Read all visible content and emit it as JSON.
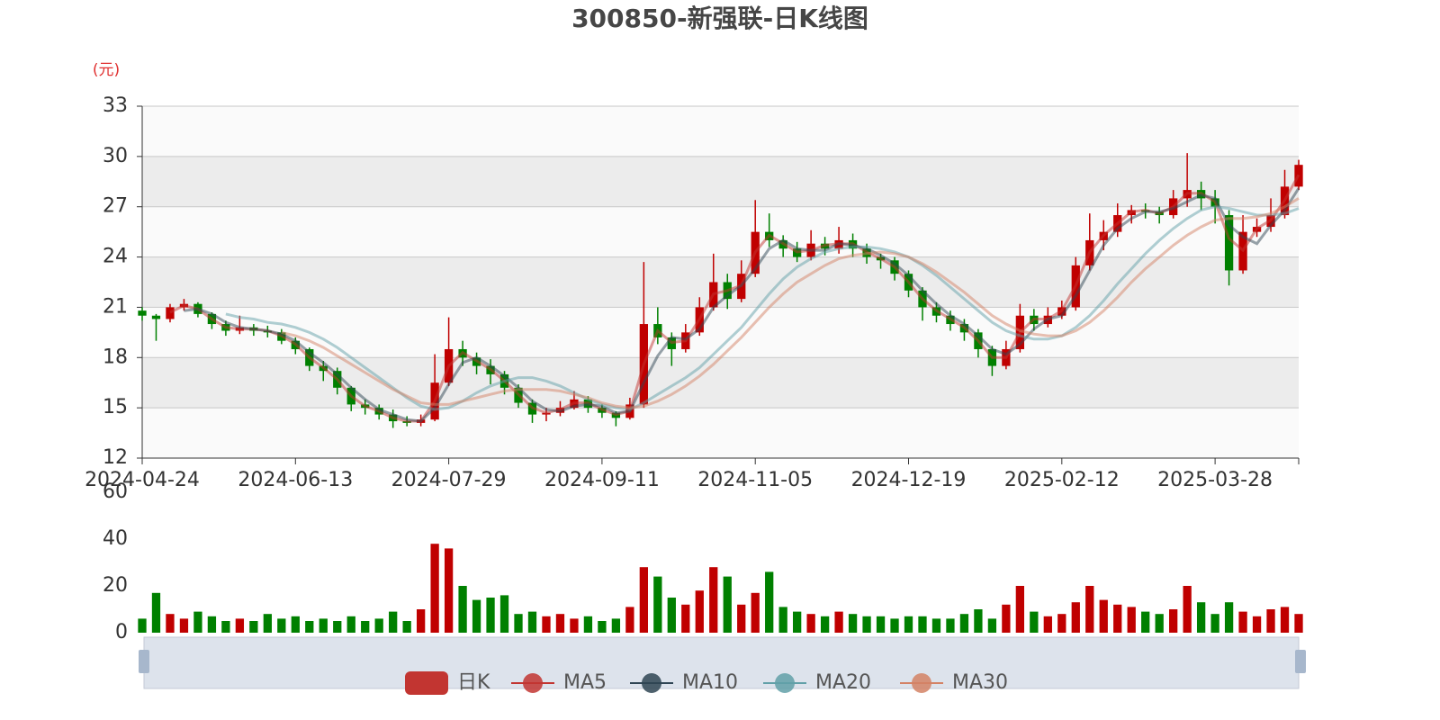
{
  "chart_data": {
    "type": "candlestick",
    "title": "300850-新强联-日K线图",
    "y_unit": "(元)",
    "candle_name": "日K",
    "up_color": "#c00000",
    "down_color": "#008000",
    "legend_color": "#c23531",
    "categories": [
      "2024-04-24",
      null,
      null,
      null,
      null,
      null,
      null,
      null,
      null,
      null,
      null,
      "2024-06-13",
      null,
      null,
      null,
      null,
      null,
      null,
      null,
      null,
      null,
      null,
      "2024-07-29",
      null,
      null,
      null,
      null,
      null,
      null,
      null,
      null,
      null,
      null,
      "2024-09-11",
      null,
      null,
      null,
      null,
      null,
      null,
      null,
      null,
      null,
      null,
      "2024-11-05",
      null,
      null,
      null,
      null,
      null,
      null,
      null,
      null,
      null,
      null,
      "2024-12-19",
      null,
      null,
      null,
      null,
      null,
      null,
      null,
      null,
      null,
      null,
      "2025-02-12",
      null,
      null,
      null,
      null,
      null,
      null,
      null,
      null,
      null,
      null,
      "2025-03-28",
      null,
      null,
      null,
      null,
      null,
      null
    ],
    "ohlc": [
      [
        20.8,
        20.5,
        20.2,
        21.0
      ],
      [
        20.5,
        20.3,
        19.0,
        20.6
      ],
      [
        20.3,
        21.0,
        20.1,
        21.2
      ],
      [
        21.0,
        21.2,
        20.8,
        21.5
      ],
      [
        21.2,
        20.6,
        20.4,
        21.3
      ],
      [
        20.6,
        20.0,
        19.7,
        20.7
      ],
      [
        20.0,
        19.6,
        19.3,
        20.2
      ],
      [
        19.6,
        19.8,
        19.4,
        20.5
      ],
      [
        19.8,
        19.6,
        19.3,
        20.0
      ],
      [
        19.6,
        19.5,
        19.2,
        19.9
      ],
      [
        19.5,
        19.0,
        18.8,
        19.7
      ],
      [
        19.0,
        18.5,
        18.2,
        19.2
      ],
      [
        18.5,
        17.5,
        17.2,
        18.6
      ],
      [
        17.5,
        17.2,
        16.6,
        17.8
      ],
      [
        17.2,
        16.2,
        15.8,
        17.4
      ],
      [
        16.2,
        15.2,
        14.8,
        16.3
      ],
      [
        15.2,
        15.0,
        14.6,
        15.5
      ],
      [
        15.0,
        14.6,
        14.3,
        15.2
      ],
      [
        14.6,
        14.2,
        13.8,
        14.9
      ],
      [
        14.2,
        14.1,
        13.9,
        14.5
      ],
      [
        14.1,
        14.3,
        13.9,
        14.6
      ],
      [
        14.3,
        16.5,
        14.2,
        18.2
      ],
      [
        16.5,
        18.5,
        16.3,
        20.4
      ],
      [
        18.5,
        18.0,
        17.5,
        19.0
      ],
      [
        18.0,
        17.5,
        17.0,
        18.3
      ],
      [
        17.5,
        17.0,
        16.4,
        17.9
      ],
      [
        17.0,
        16.2,
        15.8,
        17.2
      ],
      [
        16.2,
        15.3,
        15.0,
        16.4
      ],
      [
        15.3,
        14.6,
        14.1,
        15.5
      ],
      [
        14.6,
        14.7,
        14.2,
        15.0
      ],
      [
        14.7,
        15.0,
        14.5,
        15.4
      ],
      [
        15.0,
        15.5,
        14.9,
        16.0
      ],
      [
        15.5,
        15.0,
        14.7,
        15.7
      ],
      [
        15.0,
        14.7,
        14.4,
        15.2
      ],
      [
        14.7,
        14.4,
        13.9,
        14.8
      ],
      [
        14.4,
        15.2,
        14.3,
        15.6
      ],
      [
        15.2,
        20.0,
        15.0,
        23.7
      ],
      [
        20.0,
        19.2,
        18.8,
        21.0
      ],
      [
        19.2,
        18.5,
        17.5,
        19.5
      ],
      [
        18.5,
        19.5,
        18.3,
        20.0
      ],
      [
        19.5,
        21.0,
        19.3,
        21.6
      ],
      [
        21.0,
        22.5,
        20.8,
        24.2
      ],
      [
        22.5,
        21.5,
        20.9,
        23.0
      ],
      [
        21.5,
        23.0,
        21.3,
        23.8
      ],
      [
        23.0,
        25.5,
        22.8,
        27.4
      ],
      [
        25.5,
        25.0,
        24.6,
        26.6
      ],
      [
        25.0,
        24.5,
        24.0,
        25.3
      ],
      [
        24.5,
        24.0,
        23.7,
        24.9
      ],
      [
        24.0,
        24.8,
        23.8,
        25.6
      ],
      [
        24.8,
        24.5,
        24.1,
        25.2
      ],
      [
        24.5,
        25.0,
        24.2,
        25.8
      ],
      [
        25.0,
        24.5,
        24.0,
        25.4
      ],
      [
        24.5,
        24.0,
        23.6,
        24.8
      ],
      [
        24.0,
        23.8,
        23.3,
        24.2
      ],
      [
        23.8,
        23.0,
        22.6,
        24.0
      ],
      [
        23.0,
        22.0,
        21.6,
        23.2
      ],
      [
        22.0,
        21.0,
        20.2,
        22.2
      ],
      [
        21.0,
        20.5,
        20.1,
        21.3
      ],
      [
        20.5,
        20.0,
        19.6,
        20.8
      ],
      [
        20.0,
        19.5,
        19.0,
        20.3
      ],
      [
        19.5,
        18.5,
        18.0,
        19.7
      ],
      [
        18.5,
        17.5,
        16.9,
        18.7
      ],
      [
        17.5,
        18.5,
        17.3,
        19.0
      ],
      [
        18.5,
        20.5,
        18.3,
        21.2
      ],
      [
        20.5,
        20.0,
        19.6,
        20.9
      ],
      [
        20.0,
        20.5,
        19.8,
        21.0
      ],
      [
        20.5,
        21.0,
        20.3,
        21.4
      ],
      [
        21.0,
        23.5,
        20.8,
        24.0
      ],
      [
        23.5,
        25.0,
        23.2,
        26.6
      ],
      [
        25.0,
        25.5,
        24.4,
        26.2
      ],
      [
        25.5,
        26.5,
        25.2,
        27.2
      ],
      [
        26.5,
        26.8,
        26.0,
        27.1
      ],
      [
        26.8,
        26.7,
        26.3,
        27.2
      ],
      [
        26.7,
        26.5,
        26.0,
        27.0
      ],
      [
        26.5,
        27.5,
        26.3,
        28.0
      ],
      [
        27.5,
        28.0,
        27.0,
        30.2
      ],
      [
        28.0,
        27.5,
        26.8,
        28.5
      ],
      [
        27.5,
        27.0,
        26.0,
        28.0
      ],
      [
        26.5,
        23.2,
        22.3,
        26.8
      ],
      [
        23.2,
        25.5,
        23.0,
        26.5
      ],
      [
        25.5,
        25.8,
        25.2,
        26.3
      ],
      [
        25.8,
        26.5,
        25.5,
        27.5
      ],
      [
        26.5,
        28.2,
        26.3,
        29.2
      ],
      [
        28.2,
        29.5,
        28.0,
        29.8
      ]
    ],
    "ylim": [
      12,
      33
    ],
    "yticks": [
      12,
      15,
      18,
      21,
      24,
      27,
      30,
      33
    ],
    "ma": [
      {
        "name": "MA5",
        "color": "#c23531",
        "values": [
          null,
          null,
          20.7,
          21.1,
          20.9,
          20.3,
          19.8,
          19.7,
          19.7,
          19.6,
          19.3,
          18.8,
          18.0,
          17.4,
          16.7,
          15.7,
          15.1,
          14.8,
          14.4,
          14.2,
          14.2,
          15.4,
          17.5,
          18.3,
          17.8,
          17.3,
          16.6,
          15.8,
          15.0,
          14.7,
          14.9,
          15.3,
          15.3,
          14.9,
          14.6,
          14.8,
          17.6,
          19.6,
          18.9,
          19.0,
          20.3,
          21.8,
          22.0,
          22.3,
          24.3,
          25.3,
          24.8,
          24.3,
          24.4,
          24.7,
          24.8,
          24.8,
          24.3,
          23.9,
          23.4,
          22.5,
          21.5,
          20.8,
          20.3,
          19.8,
          19.0,
          18.0,
          18.0,
          19.5,
          20.3,
          20.3,
          20.8,
          22.3,
          24.3,
          25.3,
          26.0,
          26.7,
          26.8,
          26.6,
          27.0,
          27.8,
          27.8,
          27.3,
          25.1,
          24.4,
          25.7,
          26.2,
          27.4,
          28.9
        ]
      },
      {
        "name": "MA10",
        "color": "#2f4554",
        "values": [
          null,
          null,
          null,
          20.8,
          20.9,
          20.6,
          20.1,
          19.8,
          19.7,
          19.6,
          19.4,
          19.0,
          18.3,
          17.7,
          17.0,
          16.2,
          15.5,
          14.9,
          14.6,
          14.3,
          14.2,
          15.0,
          16.4,
          17.7,
          18.0,
          17.5,
          16.9,
          16.2,
          15.4,
          14.9,
          14.8,
          15.1,
          15.2,
          15.1,
          14.7,
          14.8,
          16.5,
          18.1,
          19.2,
          19.1,
          19.7,
          21.0,
          21.7,
          22.3,
          23.3,
          24.5,
          25.0,
          24.5,
          24.4,
          24.4,
          24.8,
          24.7,
          24.5,
          24.1,
          23.6,
          22.9,
          22.0,
          21.2,
          20.5,
          20.0,
          19.3,
          18.5,
          18.2,
          18.8,
          19.7,
          20.3,
          20.5,
          21.7,
          23.2,
          24.7,
          25.7,
          26.3,
          26.7,
          26.7,
          26.9,
          27.3,
          27.7,
          27.5,
          25.9,
          25.2,
          24.8,
          25.9,
          26.8,
          28.1
        ]
      },
      {
        "name": "MA20",
        "color": "#61a0a8",
        "values": [
          null,
          null,
          null,
          null,
          null,
          null,
          20.6,
          20.4,
          20.3,
          20.1,
          20.0,
          19.8,
          19.5,
          19.1,
          18.6,
          18.0,
          17.4,
          16.8,
          16.2,
          15.6,
          15.1,
          14.9,
          15.0,
          15.4,
          15.9,
          16.3,
          16.6,
          16.8,
          16.8,
          16.6,
          16.3,
          15.9,
          15.5,
          15.2,
          15.0,
          14.9,
          15.3,
          15.8,
          16.3,
          16.8,
          17.4,
          18.2,
          19.0,
          19.8,
          20.8,
          21.8,
          22.7,
          23.4,
          23.9,
          24.3,
          24.5,
          24.6,
          24.6,
          24.5,
          24.3,
          24.0,
          23.5,
          22.9,
          22.2,
          21.5,
          20.8,
          20.1,
          19.6,
          19.3,
          19.1,
          19.1,
          19.3,
          19.8,
          20.5,
          21.4,
          22.4,
          23.3,
          24.2,
          25.0,
          25.7,
          26.3,
          26.8,
          27.0,
          26.9,
          26.7,
          26.5,
          26.5,
          26.6,
          26.9
        ]
      },
      {
        "name": "MA30",
        "color": "#d48265",
        "values": [
          null,
          null,
          null,
          null,
          null,
          null,
          null,
          null,
          null,
          null,
          19.5,
          19.3,
          19.0,
          18.6,
          18.1,
          17.6,
          17.1,
          16.6,
          16.1,
          15.7,
          15.3,
          15.2,
          15.2,
          15.4,
          15.6,
          15.8,
          16.0,
          16.1,
          16.1,
          16.1,
          16.0,
          15.8,
          15.6,
          15.3,
          15.1,
          15.0,
          15.1,
          15.4,
          15.8,
          16.3,
          16.9,
          17.6,
          18.4,
          19.2,
          20.1,
          21.0,
          21.8,
          22.5,
          23.0,
          23.5,
          23.9,
          24.1,
          24.2,
          24.3,
          24.2,
          24.0,
          23.6,
          23.1,
          22.5,
          21.9,
          21.2,
          20.5,
          20.0,
          19.6,
          19.4,
          19.3,
          19.3,
          19.6,
          20.1,
          20.8,
          21.6,
          22.5,
          23.3,
          24.0,
          24.7,
          25.3,
          25.8,
          26.2,
          26.3,
          26.3,
          26.4,
          26.6,
          27.0,
          27.5
        ]
      }
    ],
    "volume": {
      "values": [
        6,
        17,
        8,
        6,
        9,
        7,
        5,
        6,
        5,
        8,
        6,
        7,
        5,
        6,
        5,
        7,
        5,
        6,
        9,
        5,
        10,
        38,
        36,
        20,
        14,
        15,
        16,
        8,
        9,
        7,
        8,
        6,
        7,
        5,
        6,
        11,
        28,
        24,
        15,
        12,
        18,
        28,
        24,
        12,
        17,
        26,
        11,
        9,
        8,
        7,
        9,
        8,
        7,
        7,
        6,
        7,
        7,
        6,
        6,
        8,
        10,
        6,
        12,
        20,
        9,
        7,
        8,
        13,
        20,
        14,
        12,
        11,
        9,
        8,
        10,
        20,
        13,
        8,
        13,
        9,
        7,
        10,
        11,
        8
      ],
      "ylim": [
        0,
        60
      ],
      "yticks": [
        0,
        20,
        40,
        60
      ]
    }
  }
}
